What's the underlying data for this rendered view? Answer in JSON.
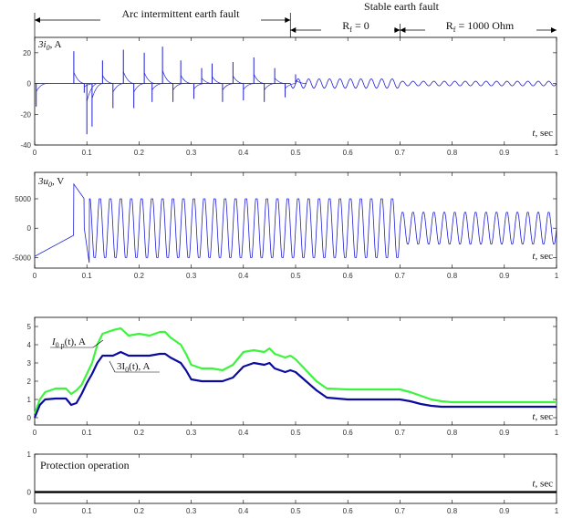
{
  "header": {
    "arc_label": "Arc intermittent earth fault",
    "stable_label": "Stable earth fault",
    "rf0_label": "R",
    "rf0_sub": "f",
    "rf0_value": " = 0",
    "rf1000_label": "R",
    "rf1000_sub": "f",
    "rf1000_value": " = 1000 Ohm",
    "boundaries": [
      0,
      0.49,
      0.7,
      1.0
    ]
  },
  "colors": {
    "blue": "#1f1fd6",
    "green": "#3cf43c",
    "navy": "#0b0b9e",
    "black": "#000000"
  },
  "chart_data": [
    {
      "type": "line",
      "id": "i0",
      "label_text": "3i",
      "label_sub": "0",
      "label_unit": ", A",
      "tlabel": "t",
      "tunit": ", sec",
      "xlim": [
        0,
        1
      ],
      "ylim": [
        -40,
        30
      ],
      "yticks": [
        -40,
        -20,
        0,
        20
      ],
      "xticks": [
        0,
        0.1,
        0.2,
        0.3,
        0.4,
        0.5,
        0.6,
        0.7,
        0.8,
        0.9,
        1
      ],
      "spikes": [
        {
          "x": 0.003,
          "y": -15
        },
        {
          "x": 0.075,
          "y": 21
        },
        {
          "x": 0.095,
          "y": -6
        },
        {
          "x": 0.1,
          "y": -33
        },
        {
          "x": 0.11,
          "y": -28
        },
        {
          "x": 0.13,
          "y": 15
        },
        {
          "x": 0.15,
          "y": -16
        },
        {
          "x": 0.17,
          "y": 22
        },
        {
          "x": 0.19,
          "y": -16
        },
        {
          "x": 0.21,
          "y": 20
        },
        {
          "x": 0.225,
          "y": -12
        },
        {
          "x": 0.245,
          "y": 24
        },
        {
          "x": 0.265,
          "y": -12
        },
        {
          "x": 0.28,
          "y": 15
        },
        {
          "x": 0.305,
          "y": -10
        },
        {
          "x": 0.32,
          "y": 10
        },
        {
          "x": 0.34,
          "y": 13
        },
        {
          "x": 0.36,
          "y": -12
        },
        {
          "x": 0.38,
          "y": 14
        },
        {
          "x": 0.4,
          "y": -11
        },
        {
          "x": 0.42,
          "y": 17
        },
        {
          "x": 0.44,
          "y": -12
        },
        {
          "x": 0.46,
          "y": 10
        },
        {
          "x": 0.48,
          "y": -9
        },
        {
          "x": 0.5,
          "y": 6
        }
      ],
      "osc_amp_rf0": 3,
      "osc_amp_rf1000": 1.5
    },
    {
      "type": "line",
      "id": "u0",
      "label_text": "3u",
      "label_sub": "0",
      "label_unit": ", V",
      "tlabel": "t",
      "tunit": ", sec",
      "xlim": [
        0,
        1
      ],
      "ylim": [
        -6800,
        9500
      ],
      "yticks": [
        -5000,
        0,
        5000
      ],
      "xticks": [
        0,
        0.1,
        0.2,
        0.3,
        0.4,
        0.5,
        0.6,
        0.7,
        0.8,
        0.9,
        1
      ],
      "amplitude_arc": 5000,
      "amplitude_rf1000": 2700,
      "frequency_hz": 50
    },
    {
      "type": "line",
      "id": "rms",
      "xlim": [
        0,
        1
      ],
      "ylim": [
        -0.4,
        5.5
      ],
      "yticks": [
        0,
        1,
        2,
        3,
        4,
        5
      ],
      "xticks": [
        0,
        0.1,
        0.2,
        0.3,
        0.4,
        0.5,
        0.6,
        0.7,
        0.8,
        0.9,
        1
      ],
      "tlabel": "t",
      "tunit": ", sec",
      "series": [
        {
          "name_pre": "I",
          "name_sub": "0 p",
          "name_post": "(t), A",
          "color": "#3cf43c",
          "x": [
            0,
            0.01,
            0.02,
            0.04,
            0.06,
            0.07,
            0.08,
            0.09,
            0.1,
            0.11,
            0.12,
            0.13,
            0.15,
            0.165,
            0.18,
            0.2,
            0.22,
            0.24,
            0.25,
            0.26,
            0.28,
            0.29,
            0.3,
            0.32,
            0.34,
            0.36,
            0.38,
            0.4,
            0.42,
            0.44,
            0.45,
            0.46,
            0.48,
            0.49,
            0.5,
            0.52,
            0.54,
            0.56,
            0.6,
            0.65,
            0.7,
            0.72,
            0.74,
            0.76,
            0.78,
            0.8,
            0.9,
            1.0
          ],
          "y": [
            0.2,
            1.0,
            1.4,
            1.6,
            1.6,
            1.3,
            1.5,
            1.8,
            2.4,
            3.0,
            4.0,
            4.6,
            4.8,
            4.9,
            4.5,
            4.6,
            4.5,
            4.7,
            4.7,
            4.4,
            4.0,
            3.5,
            2.9,
            2.7,
            2.7,
            2.6,
            2.9,
            3.6,
            3.7,
            3.6,
            3.8,
            3.5,
            3.3,
            3.4,
            3.2,
            2.6,
            2.0,
            1.6,
            1.55,
            1.55,
            1.55,
            1.4,
            1.2,
            1.0,
            0.9,
            0.85,
            0.85,
            0.85
          ]
        },
        {
          "name_pre": "3I",
          "name_sub": "0",
          "name_post": "(t), A",
          "color": "#0b0b9e",
          "x": [
            0,
            0.01,
            0.02,
            0.04,
            0.06,
            0.07,
            0.08,
            0.09,
            0.1,
            0.11,
            0.12,
            0.13,
            0.15,
            0.165,
            0.18,
            0.2,
            0.22,
            0.24,
            0.25,
            0.26,
            0.28,
            0.29,
            0.3,
            0.32,
            0.34,
            0.36,
            0.38,
            0.4,
            0.42,
            0.44,
            0.45,
            0.46,
            0.48,
            0.49,
            0.5,
            0.52,
            0.54,
            0.56,
            0.6,
            0.65,
            0.7,
            0.72,
            0.74,
            0.76,
            0.78,
            0.8,
            0.9,
            1.0
          ],
          "y": [
            0.0,
            0.7,
            1.0,
            1.05,
            1.05,
            0.7,
            0.8,
            1.3,
            1.9,
            2.4,
            3.0,
            3.4,
            3.4,
            3.6,
            3.4,
            3.4,
            3.4,
            3.5,
            3.5,
            3.3,
            3.0,
            2.6,
            2.1,
            2.0,
            2.0,
            2.0,
            2.2,
            2.8,
            3.0,
            2.9,
            3.0,
            2.7,
            2.5,
            2.6,
            2.5,
            2.0,
            1.5,
            1.1,
            1.0,
            1.0,
            1.0,
            0.9,
            0.75,
            0.65,
            0.6,
            0.6,
            0.6,
            0.6
          ]
        }
      ]
    },
    {
      "type": "line",
      "id": "trip",
      "label_text": "Protection operation",
      "tlabel": "t",
      "tunit": ", sec",
      "xlim": [
        0,
        1
      ],
      "ylim": [
        -0.3,
        1
      ],
      "yticks": [
        0,
        1
      ],
      "xticks": [
        0,
        0.1,
        0.2,
        0.3,
        0.4,
        0.5,
        0.6,
        0.7,
        0.8,
        0.9,
        1
      ],
      "x": [
        0,
        1
      ],
      "y": [
        0,
        0
      ]
    }
  ]
}
